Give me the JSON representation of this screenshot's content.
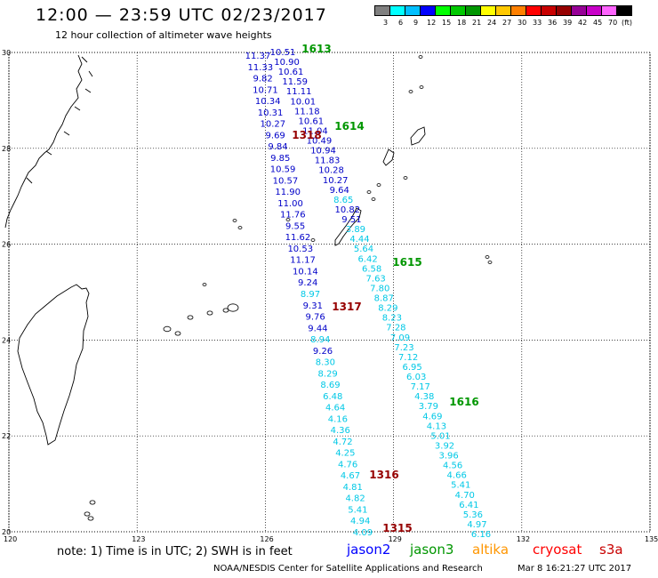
{
  "header": {
    "title": "12:00 — 23:59 UTC 02/23/2017",
    "subtitle": "12 hour collection of altimeter wave heights"
  },
  "color_scale": {
    "unit": "(ft)",
    "colors": [
      "#808080",
      "#00ffff",
      "#00bfff",
      "#0000ff",
      "#00ff00",
      "#00c800",
      "#009600",
      "#ffff00",
      "#ffc800",
      "#ff8000",
      "#ff0000",
      "#c80000",
      "#960000",
      "#960096",
      "#c800c8",
      "#ff64ff",
      "#000000"
    ],
    "labels": [
      "3",
      "6",
      "9",
      "12",
      "15",
      "18",
      "21",
      "24",
      "27",
      "30",
      "33",
      "36",
      "39",
      "42",
      "45",
      "70"
    ]
  },
  "map": {
    "lon_range": [
      120,
      135
    ],
    "lat_range": [
      20,
      30
    ],
    "lon_ticks": [
      "120",
      "123",
      "126",
      "129",
      "132",
      "135"
    ],
    "lat_ticks": [
      "30",
      "28",
      "26",
      "24",
      "22",
      "20"
    ],
    "tracks": [
      {
        "mission": "jason2",
        "color": "#0000c8",
        "values": [
          "11.37",
          "11.33",
          "9.82",
          "10.71",
          "10.34",
          "10.31",
          "10.27",
          "9.69",
          "9.84",
          "9.85",
          "10.59",
          "10.57",
          "11.90",
          "11.00",
          "11.76",
          "9.55",
          "11.62",
          "10.53",
          "11.17",
          "10.14",
          "9.24",
          "8.97",
          "9.31",
          "9.76",
          "9.44",
          "8.94",
          "9.26",
          "8.30",
          "8.29",
          "8.69",
          "6.48",
          "4.64",
          "4.16",
          "4.36",
          "4.72",
          "4.25",
          "4.76",
          "4.67",
          "4.81",
          "4.82",
          "5.41",
          "4.94",
          "4.09"
        ]
      },
      {
        "mission": "jason2",
        "color": "#0000c8",
        "values": [
          "10.51",
          "10.90",
          "10.61",
          "11.59",
          "11.11",
          "10.01",
          "11.18",
          "10.61",
          "11.04",
          "10.49",
          "10.94",
          "11.83",
          "10.28",
          "10.27",
          "9.64",
          "8.65",
          "10.82",
          "9.51",
          "3.89",
          "4.44",
          "5.64",
          "6.42",
          "6.58",
          "7.63",
          "7.80",
          "8.87",
          "8.29",
          "8.23",
          "7.28",
          "7.09",
          "7.23",
          "7.12",
          "6.95",
          "6.03",
          "7.17",
          "4.38",
          "3.79",
          "4.69",
          "4.13",
          "5.01",
          "3.92",
          "3.96",
          "4.56",
          "4.66",
          "5.41",
          "4.70",
          "6.41",
          "5.36",
          "4.97",
          "6.16"
        ]
      }
    ],
    "pass_labels": [
      {
        "text": "1613",
        "mission": "jason3",
        "color": "#009600"
      },
      {
        "text": "1614",
        "mission": "jason3",
        "color": "#009600"
      },
      {
        "text": "1615",
        "mission": "jason3",
        "color": "#009600"
      },
      {
        "text": "1616",
        "mission": "jason3",
        "color": "#009600"
      },
      {
        "text": "1318",
        "mission": "jason2",
        "color": "#960000"
      },
      {
        "text": "1317",
        "mission": "jason2",
        "color": "#960000"
      },
      {
        "text": "1316",
        "mission": "jason2",
        "color": "#960000"
      },
      {
        "text": "1315",
        "mission": "jason2",
        "color": "#960000"
      }
    ]
  },
  "footer": {
    "note": "note: 1) Time is in UTC; 2) SWH is in feet",
    "missions": [
      {
        "name": "jason2",
        "color": "#0000ff"
      },
      {
        "name": "jason3",
        "color": "#009600"
      },
      {
        "name": "altika",
        "color": "#ff9600"
      },
      {
        "name": "cryosat",
        "color": "#ff0000"
      },
      {
        "name": "s3a",
        "color": "#c80000"
      }
    ],
    "credit": "NOAA/NESDIS Center for Satellite Applications and Research",
    "timestamp": "Mar  8 16:21:27 UTC 2017"
  }
}
